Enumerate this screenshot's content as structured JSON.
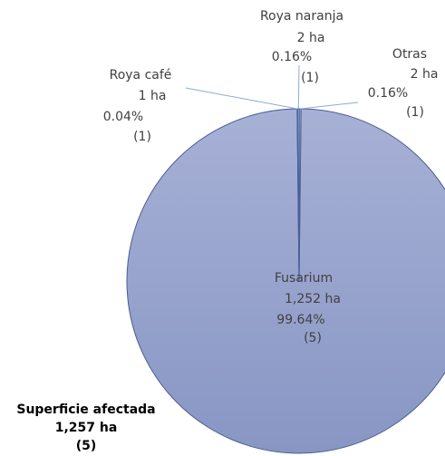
{
  "chart_data": {
    "type": "pie",
    "categories": [
      "Fusarium",
      "Roya café",
      "Roya naranja",
      "Otras"
    ],
    "values": [
      99.64,
      0.04,
      0.16,
      0.16
    ],
    "value_labels": [
      "99.64%",
      "0.04%",
      "0.16%",
      "0.16%"
    ],
    "areas": [
      1252,
      1,
      2,
      2
    ],
    "area_labels": [
      "1,252 ha",
      "1 ha",
      "2 ha",
      "2 ha"
    ],
    "counts": [
      5,
      1,
      1,
      1
    ],
    "count_labels": [
      "(5)",
      "(1)",
      "(1)",
      "(1)"
    ],
    "color": "#9ba7cf",
    "summary": {
      "title": "Superficie afectada",
      "area_label": "1,257 ha",
      "count_label": "(5)"
    }
  }
}
